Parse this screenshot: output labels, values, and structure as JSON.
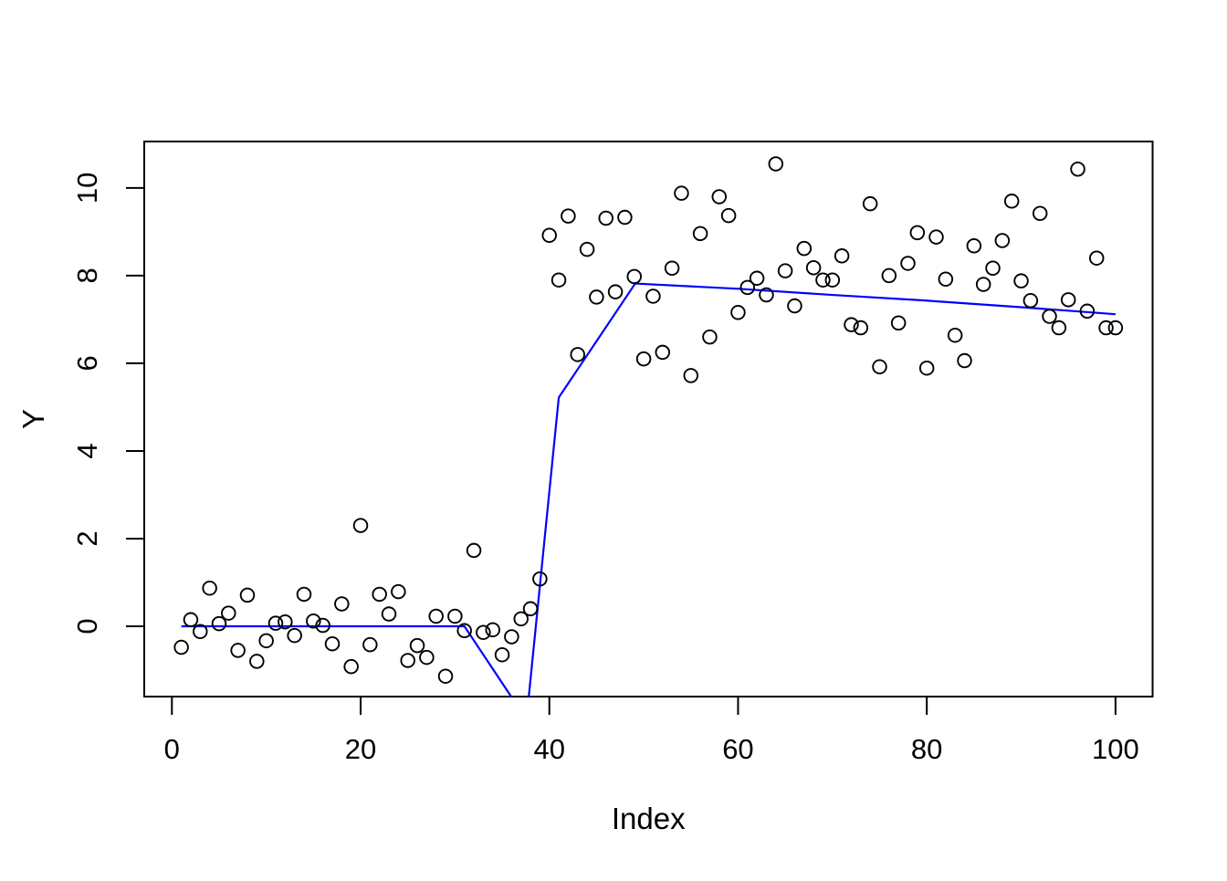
{
  "figure": {
    "background": "#ffffff",
    "border_color": "#000000"
  },
  "chart_data": {
    "type": "scatter",
    "title": "",
    "xlabel": "Index",
    "ylabel": "Y",
    "x_ticks": [
      0,
      20,
      40,
      60,
      80,
      100
    ],
    "y_ticks": [
      0,
      2,
      4,
      6,
      8,
      10
    ],
    "xlim": [
      -2.93,
      103.93
    ],
    "ylim": [
      -1.604,
      11.06
    ],
    "grid": false,
    "legend": "none",
    "point_color": "#000000",
    "point_style": "open-circle",
    "line_color": "#0000ff",
    "points": {
      "x": [
        1,
        2,
        3,
        4,
        5,
        6,
        7,
        8,
        9,
        10,
        11,
        12,
        13,
        14,
        15,
        16,
        17,
        18,
        19,
        20,
        21,
        22,
        23,
        24,
        25,
        26,
        27,
        28,
        29,
        30,
        31,
        32,
        33,
        34,
        35,
        36,
        37,
        38,
        39,
        40,
        41,
        42,
        43,
        44,
        45,
        46,
        47,
        48,
        49,
        50,
        51,
        52,
        53,
        54,
        55,
        56,
        57,
        58,
        59,
        60,
        61,
        62,
        63,
        64,
        65,
        66,
        67,
        68,
        69,
        70,
        71,
        72,
        73,
        74,
        75,
        76,
        77,
        78,
        79,
        80,
        81,
        82,
        83,
        84,
        85,
        86,
        87,
        88,
        89,
        90,
        91,
        92,
        93,
        94,
        95,
        96,
        97,
        98,
        99,
        100
      ],
      "y": [
        -0.48,
        0.15,
        -0.12,
        0.87,
        0.06,
        0.3,
        -0.55,
        0.71,
        -0.8,
        -0.33,
        0.07,
        0.1,
        -0.21,
        0.73,
        0.12,
        0.02,
        -0.4,
        0.51,
        -0.92,
        2.3,
        -0.42,
        0.73,
        0.28,
        0.79,
        -0.78,
        -0.44,
        -0.71,
        0.23,
        -1.14,
        0.23,
        -0.1,
        1.73,
        -0.14,
        -0.08,
        -0.65,
        -0.24,
        0.17,
        0.4,
        1.08,
        8.92,
        7.9,
        9.36,
        6.2,
        8.6,
        7.51,
        9.31,
        7.63,
        9.33,
        7.98,
        6.1,
        7.53,
        6.25,
        8.17,
        9.88,
        5.72,
        8.96,
        6.6,
        9.8,
        9.37,
        7.16,
        7.73,
        7.94,
        7.56,
        10.55,
        8.11,
        7.31,
        8.62,
        8.18,
        7.9,
        7.9,
        8.45,
        6.88,
        6.81,
        9.64,
        5.92,
        8.0,
        6.92,
        8.28,
        8.98,
        5.89,
        8.88,
        7.92,
        6.64,
        6.06,
        8.68,
        7.8,
        8.17,
        8.8,
        9.7,
        7.88,
        7.43,
        9.42,
        7.07,
        6.81,
        7.45,
        10.43,
        7.19,
        8.4,
        6.81,
        6.81
      ]
    },
    "fit_line": [
      [
        1,
        0
      ],
      [
        31,
        0
      ],
      [
        36.1,
        -1.65
      ],
      [
        37.8,
        -1.65
      ],
      [
        41,
        5.22
      ],
      [
        49.1,
        7.82
      ],
      [
        60,
        7.7
      ],
      [
        70,
        7.56
      ],
      [
        80,
        7.43
      ],
      [
        90,
        7.28
      ],
      [
        95,
        7.2
      ],
      [
        100,
        7.12
      ]
    ]
  }
}
